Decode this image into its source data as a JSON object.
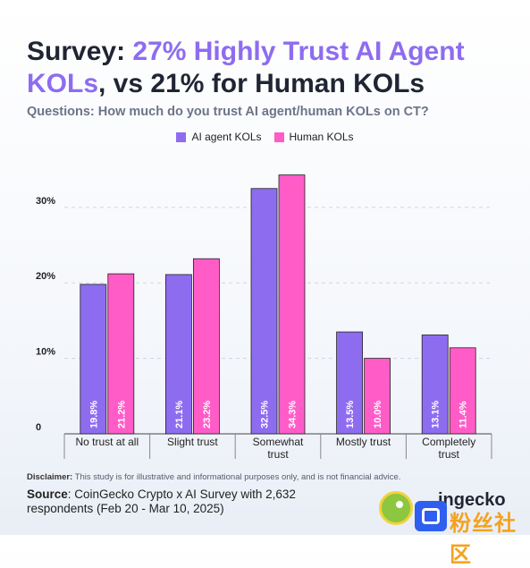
{
  "title": {
    "part1": "Survey: ",
    "part2": "27% Highly Trust AI Agent KOLs",
    "part3": ", vs 21% for Human KOLs"
  },
  "question": "Questions: How much do you trust AI agent/human KOLs on CT?",
  "disclaimer": {
    "label": "Disclaimer:",
    "text": " This study is for illustrative and informational purposes only, and is not financial advice."
  },
  "source": {
    "label": "Source",
    "text": ": CoinGecko Crypto x AI Survey with 2,632 respondents (Feb 20 - Mar 10, 2025)"
  },
  "brand": "ingecko",
  "watermark": "粉丝社区",
  "colors": {
    "ai": "#8e6cf0",
    "human": "#ff5cc8",
    "accent": "#8e6cf0",
    "grid": "#cfd5df"
  },
  "chart_data": {
    "type": "bar",
    "categories": [
      "No trust at all",
      "Slight trust",
      "Somewhat trust",
      "Mostly trust",
      "Completely trust"
    ],
    "series": [
      {
        "name": "AI agent KOLs",
        "values": [
          19.8,
          21.1,
          32.5,
          13.5,
          13.1
        ],
        "labels": [
          "19.8%",
          "21.1%",
          "32.5%",
          "13.5%",
          "13.1%"
        ]
      },
      {
        "name": "Human KOLs",
        "values": [
          21.2,
          23.2,
          34.3,
          10.0,
          11.4
        ],
        "labels": [
          "21.2%",
          "23.2%",
          "34.3%",
          "10.0%",
          "11.4%"
        ]
      }
    ],
    "yticks": [
      "0",
      "10%",
      "20%",
      "30%"
    ],
    "ylim": [
      0,
      36.5
    ],
    "grid": true,
    "legend": "top-center"
  }
}
